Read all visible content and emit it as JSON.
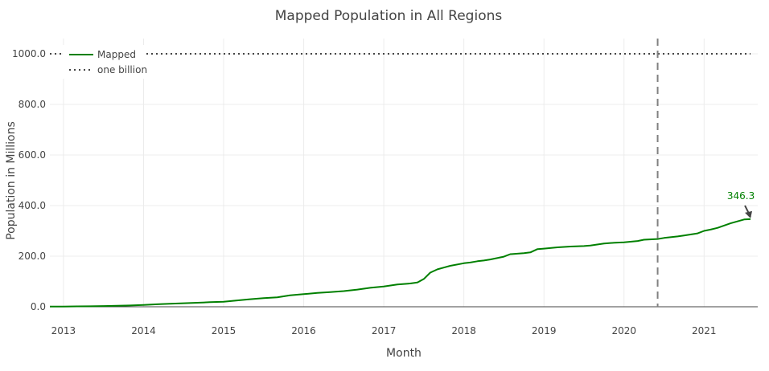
{
  "chart_data": {
    "type": "line",
    "title": "Mapped Population in All Regions",
    "xlabel": "Month",
    "ylabel": "Population in Millions",
    "xlim": [
      2012.83,
      2021.67
    ],
    "ylim": [
      0,
      1000
    ],
    "yticks": [
      0,
      200,
      400,
      600,
      800,
      1000
    ],
    "ytick_labels": [
      "0.0",
      "200.0",
      "400.0",
      "600.0",
      "800.0",
      "1000.0"
    ],
    "xticks": [
      2013,
      2014,
      2015,
      2016,
      2017,
      2018,
      2019,
      2020,
      2021
    ],
    "xtick_labels": [
      "2013",
      "2014",
      "2015",
      "2016",
      "2017",
      "2018",
      "2019",
      "2020",
      "2021"
    ],
    "grid": true,
    "legend_position": "top-left",
    "series": [
      {
        "name": "Mapped",
        "color": "#008000",
        "style": "solid",
        "x": [
          2012.83,
          2013.0,
          2013.17,
          2013.33,
          2013.5,
          2013.67,
          2013.83,
          2014.0,
          2014.17,
          2014.33,
          2014.5,
          2014.67,
          2014.83,
          2015.0,
          2015.17,
          2015.33,
          2015.5,
          2015.67,
          2015.83,
          2016.0,
          2016.17,
          2016.33,
          2016.5,
          2016.67,
          2016.83,
          2017.0,
          2017.17,
          2017.33,
          2017.42,
          2017.5,
          2017.58,
          2017.67,
          2017.75,
          2017.83,
          2018.0,
          2018.08,
          2018.17,
          2018.25,
          2018.33,
          2018.5,
          2018.58,
          2018.75,
          2018.83,
          2018.92,
          2019.0,
          2019.17,
          2019.33,
          2019.5,
          2019.58,
          2019.75,
          2019.83,
          2020.0,
          2020.08,
          2020.17,
          2020.25,
          2020.42,
          2020.5,
          2020.67,
          2020.75,
          2020.92,
          2021.0,
          2021.08,
          2021.17,
          2021.33,
          2021.5,
          2021.58
        ],
        "values": [
          0.5,
          1,
          1.5,
          2,
          3,
          4,
          5,
          7,
          10,
          12,
          14,
          16,
          18,
          20,
          25,
          30,
          34,
          37,
          45,
          50,
          55,
          58,
          62,
          68,
          75,
          80,
          88,
          92,
          96,
          110,
          135,
          148,
          155,
          162,
          172,
          175,
          180,
          183,
          187,
          198,
          208,
          212,
          215,
          228,
          230,
          235,
          238,
          240,
          242,
          250,
          252,
          255,
          257,
          260,
          265,
          268,
          272,
          278,
          282,
          290,
          300,
          305,
          312,
          330,
          345,
          346.3
        ]
      },
      {
        "name": "one billion",
        "color": "#444444",
        "style": "dotted",
        "x": [
          2012.83,
          2021.58
        ],
        "values": [
          1000,
          1000
        ]
      }
    ],
    "vertical_reference_line": {
      "x": 2020.42,
      "color": "#808080",
      "style": "dashed"
    },
    "annotations": [
      {
        "text": "346.3",
        "x": 2021.58,
        "y": 346.3,
        "color": "#008000"
      }
    ]
  }
}
